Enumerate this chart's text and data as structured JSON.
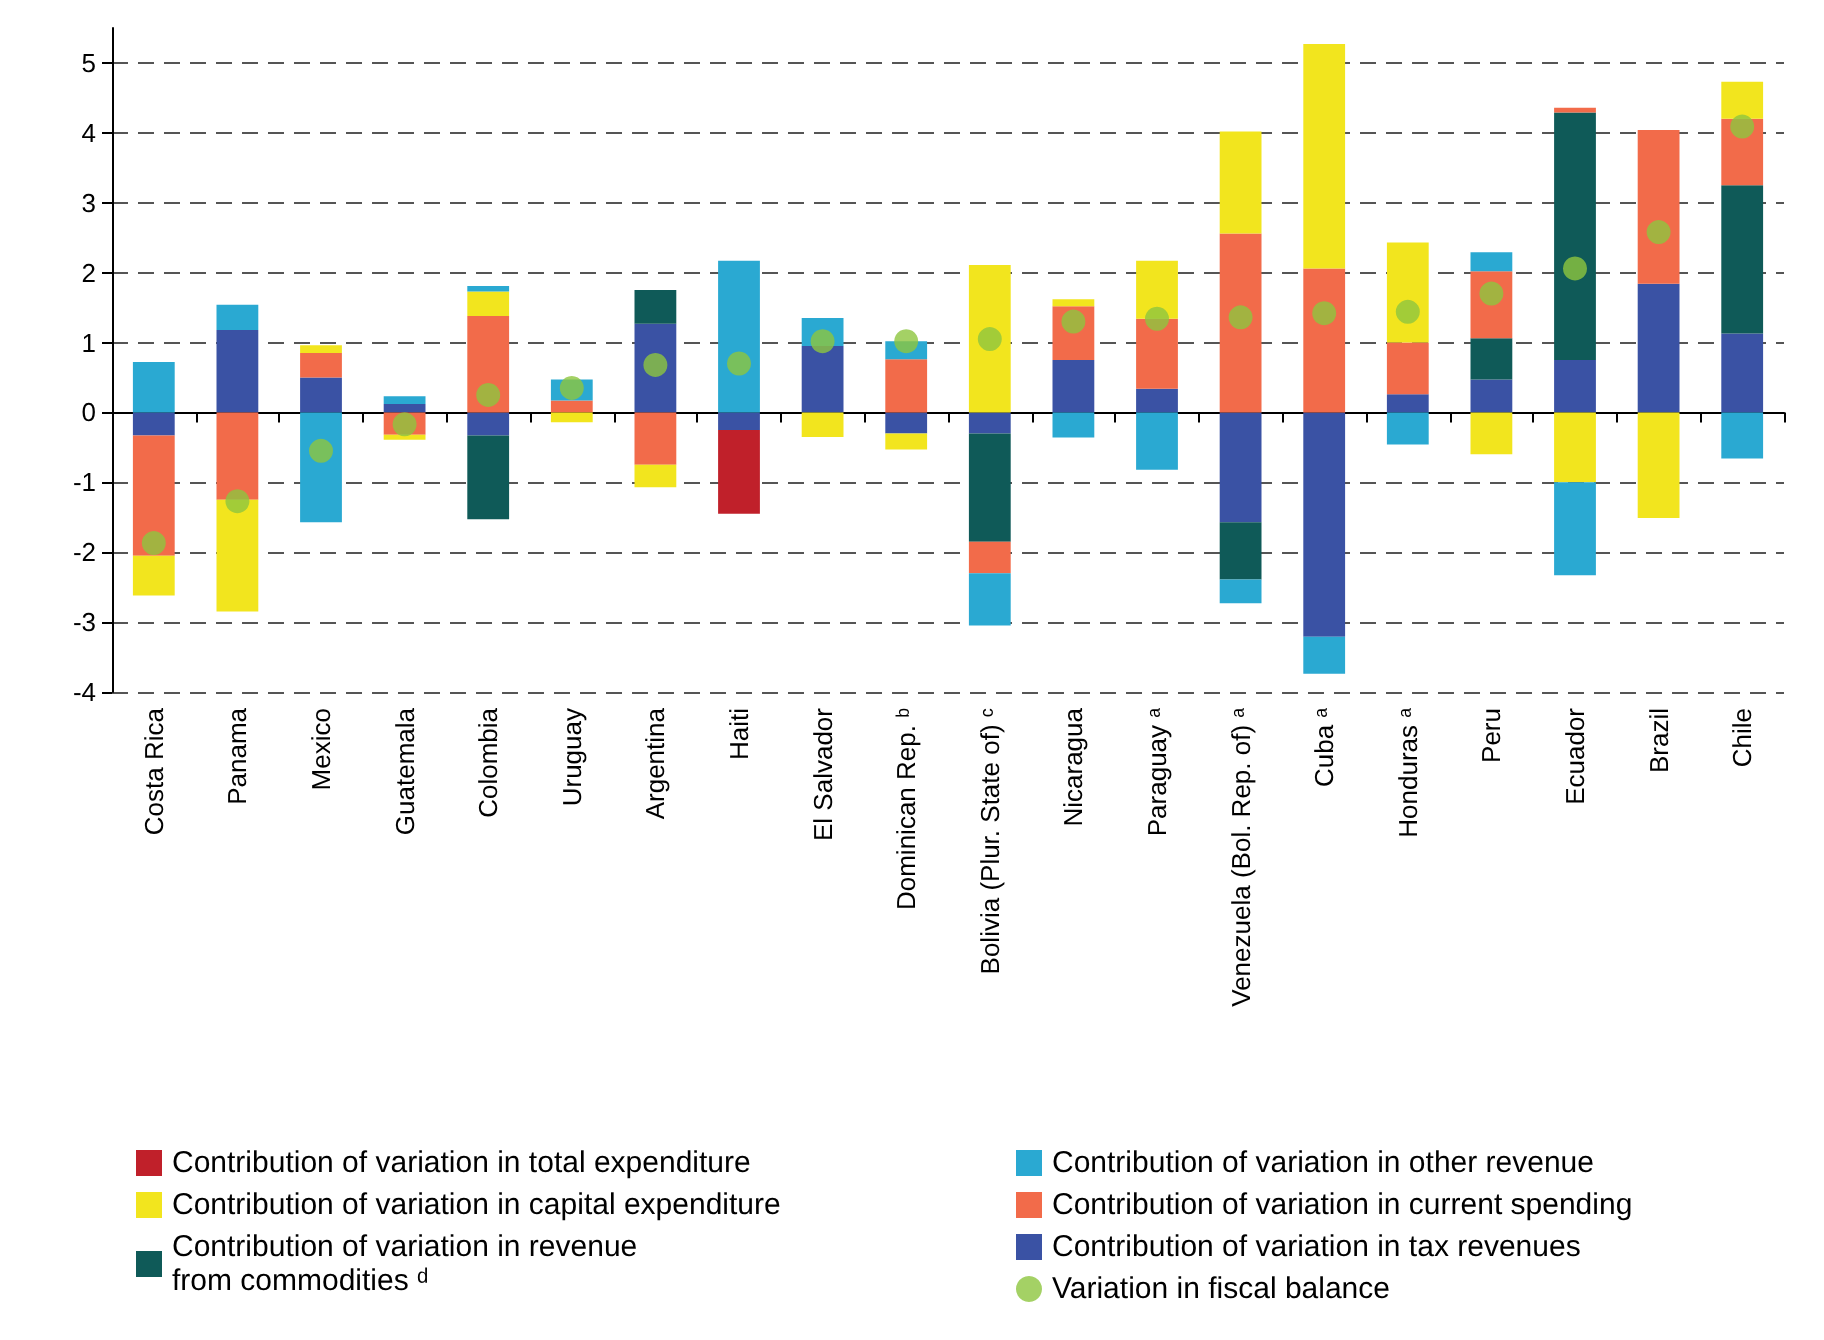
{
  "chart_data": {
    "type": "bar",
    "stacked": true,
    "categories": [
      "Costa Rica",
      "Panama",
      "Mexico",
      "Guatemala",
      "Colombia",
      "Uruguay",
      "Argentina",
      "Haiti",
      "El Salvador",
      "Dominican Rep. ᵇ",
      "Bolivia (Plur. State of) ᶜ",
      "Nicaragua",
      "Paraguay ᵃ",
      "Venezuela (Bol. Rep. of) ᵃ",
      "Cuba ᵃ",
      "Honduras ᵃ",
      "Peru",
      "Ecuador",
      "Brazil",
      "Chile"
    ],
    "series": [
      {
        "name": "Contribution of variation in tax revenues",
        "color": "#3a52a4",
        "values": [
          -0.33,
          1.18,
          0.5,
          0.12,
          -0.33,
          null,
          1.27,
          -0.25,
          0.95,
          -0.3,
          -0.3,
          0.75,
          0.34,
          -1.57,
          -3.21,
          0.26,
          0.47,
          0.75,
          1.84,
          1.13
        ]
      },
      {
        "name": "Contribution of variation in revenue\nfrom commodities ᵈ",
        "color": "#0f5a58",
        "values": [
          null,
          null,
          null,
          null,
          -1.2,
          null,
          0.48,
          null,
          null,
          null,
          -1.55,
          null,
          null,
          -0.82,
          null,
          null,
          0.59,
          3.54,
          null,
          2.12
        ]
      },
      {
        "name": "Contribution of variation in current spending",
        "color": "#f26b4a",
        "values": [
          -1.72,
          -1.25,
          0.35,
          -0.32,
          1.38,
          0.17,
          -0.75,
          null,
          null,
          0.76,
          -0.45,
          0.77,
          1.0,
          2.56,
          2.06,
          0.74,
          0.96,
          0.07,
          2.2,
          0.95
        ]
      },
      {
        "name": "Contribution of variation in capital expenditure",
        "color": "#f2e51e",
        "values": [
          -0.57,
          -1.6,
          0.11,
          -0.07,
          0.35,
          -0.14,
          -0.32,
          null,
          -0.35,
          -0.23,
          2.11,
          0.1,
          0.83,
          1.46,
          3.21,
          1.43,
          -0.6,
          -1.0,
          -1.51,
          0.53
        ]
      },
      {
        "name": "Contribution of variation in total expenditure",
        "color": "#c0202a",
        "values": [
          null,
          null,
          null,
          null,
          null,
          null,
          null,
          -1.2,
          null,
          null,
          null,
          null,
          null,
          null,
          null,
          null,
          null,
          null,
          null,
          null
        ]
      },
      {
        "name": "Contribution of variation in other revenue",
        "color": "#2aa9d2",
        "values": [
          0.72,
          0.36,
          -1.57,
          0.11,
          0.08,
          0.3,
          null,
          2.17,
          0.4,
          0.26,
          -0.75,
          -0.36,
          -0.82,
          -0.34,
          -0.53,
          -0.46,
          0.27,
          -1.33,
          null,
          -0.66
        ]
      },
      {
        "name": "Variation in fiscal balance",
        "type": "scatter",
        "marker": "circle",
        "color": "#8dc63f",
        "x": [
          "Costa Rica",
          "Panama",
          "Mexico",
          "Guatemala",
          "Colombia",
          "Uruguay",
          "Argentina",
          "Haiti",
          "El Salvador",
          "Dominican Rep. ᵇ",
          "Bolivia (Plur. State of) ᶜ",
          "Nicaragua",
          "Paraguay ᵃ",
          "Venezuela (Bol. Rep. of) ᵃ",
          "Cuba ᵃ",
          "Honduras ᵃ",
          "Peru",
          "Ecuador",
          "Brazil",
          "Chile"
        ],
        "values": [
          -1.87,
          -1.27,
          -0.55,
          -0.17,
          0.25,
          0.35,
          0.68,
          0.7,
          1.02,
          1.02,
          1.05,
          1.3,
          1.34,
          1.36,
          1.42,
          1.44,
          1.7,
          2.06,
          2.58,
          4.09
        ]
      }
    ],
    "ylim": [
      -4,
      5.5
    ],
    "yticks": [
      -4,
      -3,
      -2,
      -1,
      0,
      1,
      2,
      3,
      4,
      5
    ],
    "grid": "y",
    "legend": "bottom"
  }
}
